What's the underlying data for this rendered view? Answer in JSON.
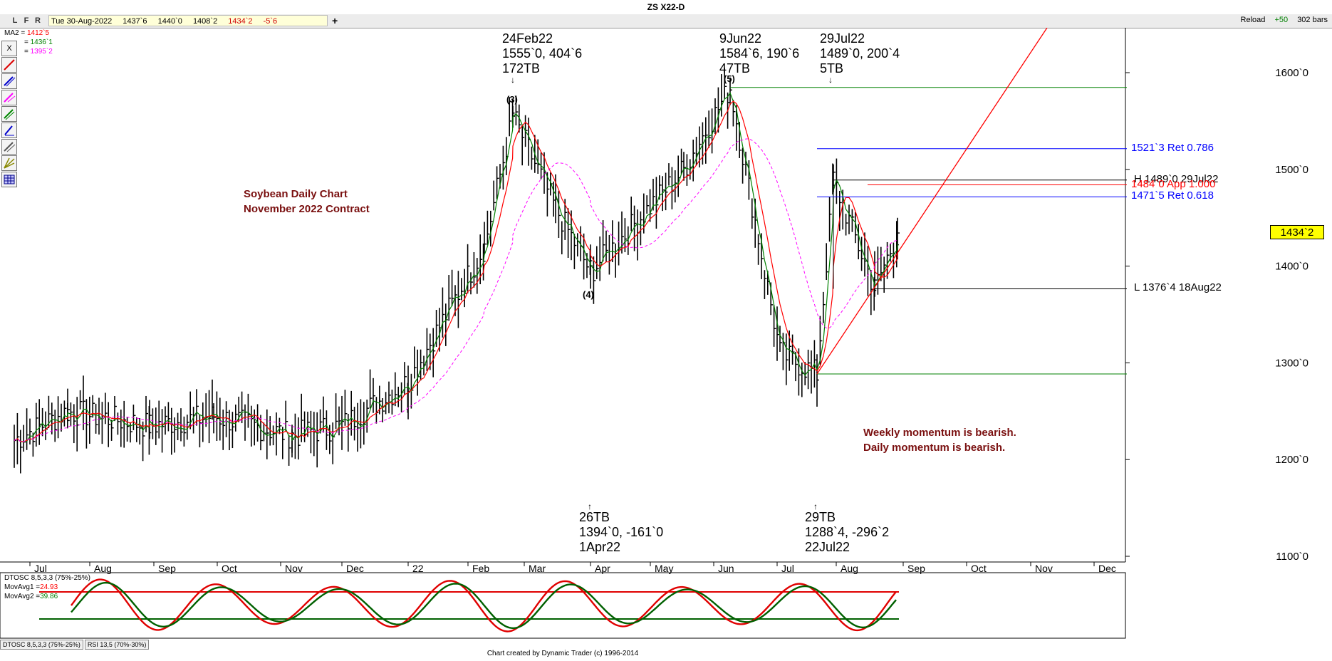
{
  "window": {
    "title": "ZS X22-D",
    "toolbar_buttons": [
      "L",
      "F",
      "R"
    ],
    "status_date": "Tue 30-Aug-2022",
    "status_values": [
      "1437`6",
      "1440`0",
      "1408`2"
    ],
    "status_close": "1434`2",
    "status_change": "-5`6",
    "plus": "+",
    "reload": "Reload",
    "bars_add": "+50",
    "bars_count": "302 bars",
    "close_x": "X"
  },
  "colors": {
    "ma1": "#ff0000",
    "ma2": "#008000",
    "ma3": "#ff00ff",
    "fib": "#0000ff",
    "trend": "#ff0000"
  },
  "ma_legend": [
    {
      "label": "MA2 =",
      "value": "1412`5",
      "color": "#ff0000"
    },
    {
      "label": "=",
      "value": "1436`1",
      "color": "#008000"
    },
    {
      "label": "=",
      "value": "1395`2",
      "color": "#ff00ff"
    }
  ],
  "price_badge": "1434`2",
  "annotations": {
    "feb_top": [
      "24Feb22",
      "1555`0, 404`6",
      "172TB"
    ],
    "jun_top": [
      "9Jun22",
      "1584`6, 190`6",
      "47TB"
    ],
    "jul_top": [
      "29Jul22",
      "1489`0, 200`4",
      "5TB"
    ],
    "apr_bottom": [
      "26TB",
      "1394`0, -161`0",
      "1Apr22"
    ],
    "jul_bottom": [
      "29TB",
      "1288`4, -296`2",
      "22Jul22"
    ],
    "wave3": "(3)",
    "wave4": "(4)",
    "wave5": "(5)",
    "arrow_down": "↓",
    "arrow_up": "↑"
  },
  "notes": {
    "title_line1": "Soybean Daily Chart",
    "title_line2": "November 2022 Contract",
    "momentum1": "Weekly momentum is bearish.",
    "momentum2": "Daily momentum is bearish."
  },
  "levels": {
    "ret786": "1521`3 Ret 0.786",
    "high": "H 1489`0 29Jul22",
    "app": "1484`0 App 1.000",
    "ret618": "1471`5 Ret 0.618",
    "low": "L 1376`4 18Aug22"
  },
  "indicator": {
    "name": "DTOSC 8,5,3,3 (75%-25%)",
    "ma1_label": "MovAvg1 =",
    "ma1_value": "24.93",
    "ma2_label": "MovAvg2 =",
    "ma2_value": "39.86",
    "tabs": [
      "DTOSC 8,5,3,3 (75%-25%)",
      "RSI 13,5 (70%-30%)"
    ]
  },
  "footer": "Chart created by Dynamic Trader  (c)  1996-2014",
  "chart_data": {
    "type": "line",
    "symbol": "ZS X22-D",
    "x_ticks": [
      "Jul",
      "Aug",
      "Sep",
      "Oct",
      "Nov",
      "Dec",
      "22",
      "Feb",
      "Mar",
      "Apr",
      "May",
      "Jun",
      "Jul",
      "Aug",
      "Sep",
      "Oct",
      "Nov",
      "Dec"
    ],
    "y_ticks": [
      "1600`0",
      "1500`0",
      "1400`0",
      "1300`0",
      "1200`0",
      "1100`0"
    ],
    "y_values": [
      1600,
      1500,
      1400,
      1300,
      1200,
      1100
    ],
    "ylim": [
      1076,
      1657
    ],
    "swing_points": [
      {
        "date": "Jul 2021",
        "price": 1220
      },
      {
        "date": "Aug 2021",
        "price": 1250
      },
      {
        "date": "Sep 2021",
        "price": 1235
      },
      {
        "date": "Oct 2021",
        "price": 1245
      },
      {
        "date": "Nov 2021",
        "price": 1225
      },
      {
        "date": "Dec 2021",
        "price": 1235
      },
      {
        "date": "Jan 2022",
        "price": 1280
      },
      {
        "date": "Feb 2022",
        "price": 1420
      },
      {
        "date": "24Feb22",
        "price": 1555
      },
      {
        "date": "Mar 2022",
        "price": 1460
      },
      {
        "date": "1Apr22",
        "price": 1394
      },
      {
        "date": "May 2022",
        "price": 1500
      },
      {
        "date": "9Jun22",
        "price": 1584.75
      },
      {
        "date": "Jul 2022",
        "price": 1310
      },
      {
        "date": "22Jul22",
        "price": 1288.5
      },
      {
        "date": "29Jul22",
        "price": 1489
      },
      {
        "date": "18Aug22",
        "price": 1376.5
      },
      {
        "date": "30Aug22",
        "price": 1434.25
      }
    ],
    "horizontal_levels": [
      1584.75,
      1521.375,
      1489,
      1484,
      1471.625,
      1376.5,
      1288.5
    ],
    "oscillator_bands": [
      75,
      25
    ]
  }
}
